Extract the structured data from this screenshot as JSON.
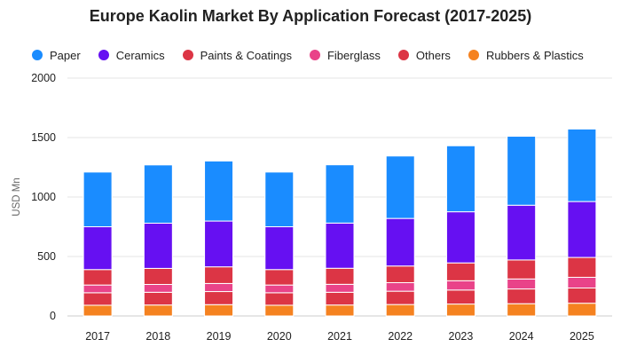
{
  "chart_data": {
    "type": "bar",
    "title": "Europe Kaolin Market By Application Forecast (2017-2025)",
    "xlabel": "",
    "ylabel": "USD Mn",
    "ylim": [
      0,
      2000
    ],
    "yticks": [
      0,
      500,
      1000,
      1500,
      2000
    ],
    "stacked": true,
    "grid": true,
    "legend_position": "top",
    "categories": [
      "2017",
      "2018",
      "2019",
      "2020",
      "2021",
      "2022",
      "2023",
      "2024",
      "2025"
    ],
    "series": [
      {
        "name": "Rubbers & Plastics",
        "color": "#f58220",
        "values": [
          90,
          92,
          95,
          90,
          92,
          96,
          100,
          103,
          107
        ]
      },
      {
        "name": "Others",
        "color": "#dc3545",
        "values": [
          105,
          107,
          110,
          105,
          107,
          112,
          118,
          124,
          128
        ]
      },
      {
        "name": "Fiberglass",
        "color": "#e94389",
        "values": [
          65,
          66,
          68,
          65,
          67,
          72,
          78,
          84,
          90
        ]
      },
      {
        "name": "Paints & Coatings",
        "color": "#dc3545",
        "values": [
          130,
          135,
          140,
          130,
          135,
          140,
          150,
          160,
          167
        ]
      },
      {
        "name": "Ceramics",
        "color": "#6610f2",
        "values": [
          360,
          380,
          385,
          360,
          380,
          400,
          430,
          460,
          470
        ]
      },
      {
        "name": "Paper",
        "color": "#1a8cff",
        "values": [
          460,
          490,
          505,
          460,
          490,
          525,
          555,
          580,
          610
        ]
      }
    ],
    "legend_order": [
      "Paper",
      "Ceramics",
      "Paints & Coatings",
      "Fiberglass",
      "Others",
      "Rubbers & Plastics"
    ]
  }
}
